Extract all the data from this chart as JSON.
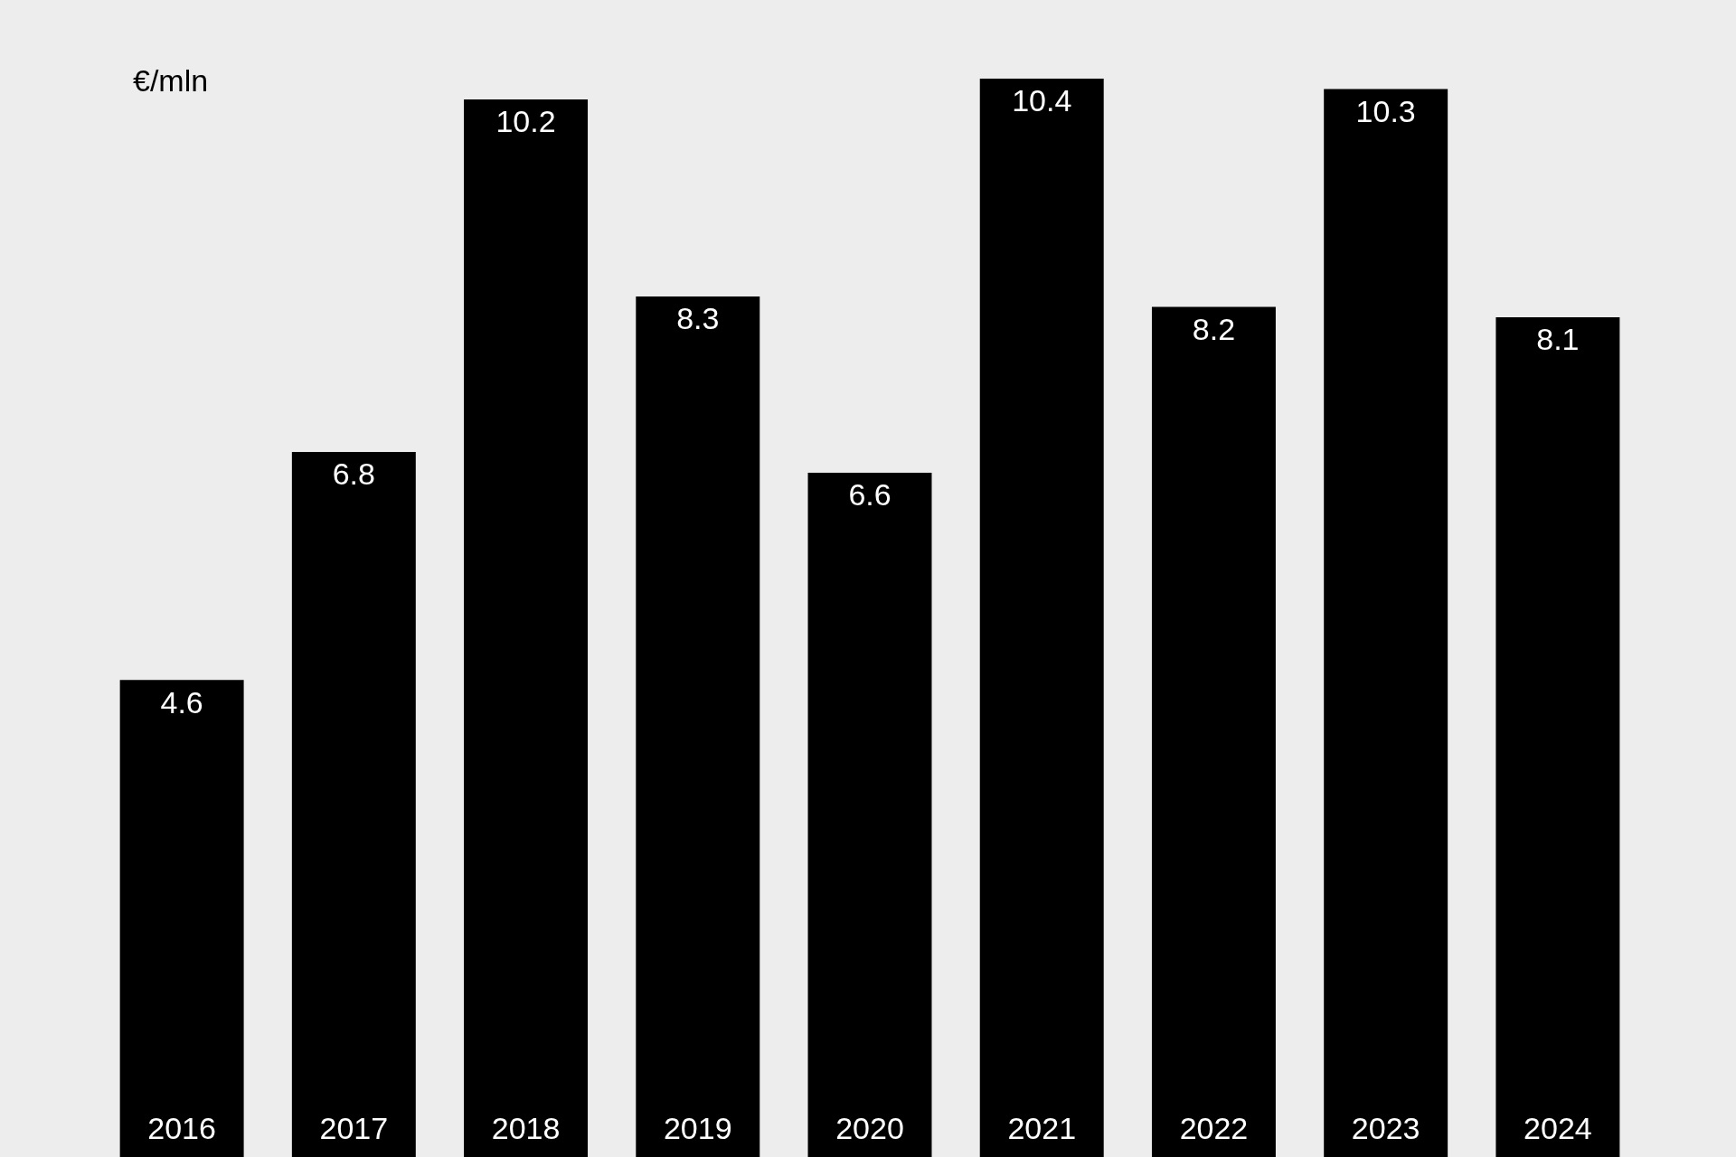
{
  "chart_data": {
    "type": "bar",
    "ylabel": "€/mln",
    "categories": [
      "2016",
      "2017",
      "2018",
      "2019",
      "2020",
      "2021",
      "2022",
      "2023",
      "2024"
    ],
    "values": [
      4.6,
      6.8,
      10.2,
      8.3,
      6.6,
      10.4,
      8.2,
      10.3,
      8.1
    ],
    "color": "#000000",
    "data_labels": true,
    "legend": false
  }
}
